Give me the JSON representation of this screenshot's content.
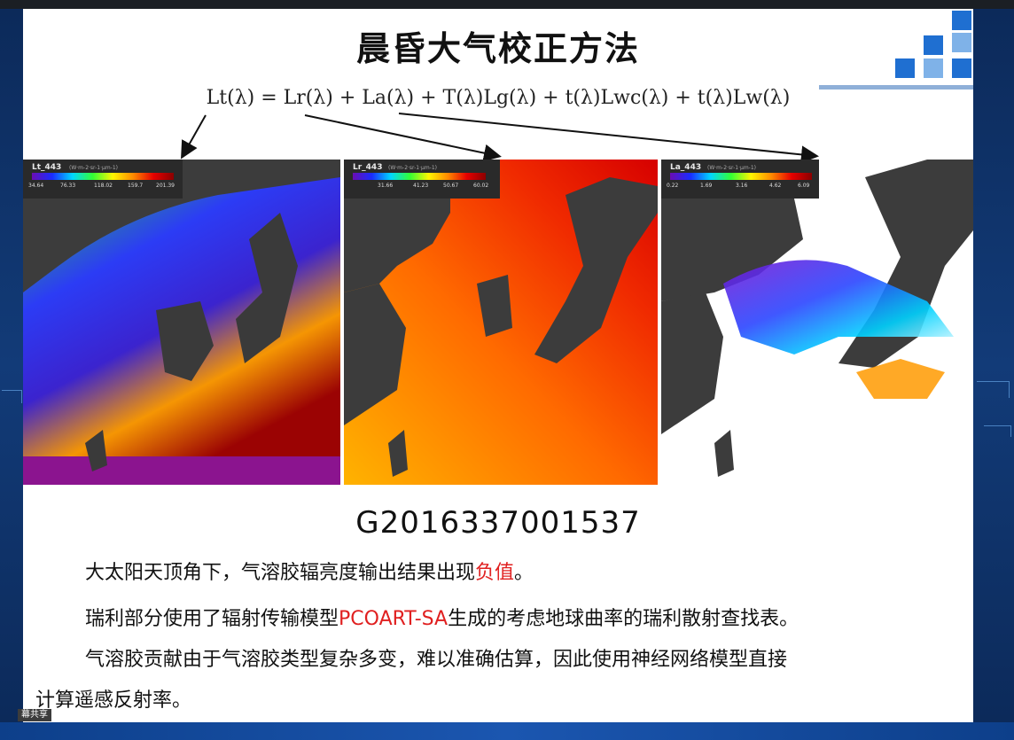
{
  "slide": {
    "title": "晨昏大气校正方法",
    "equation": "Lt(λ) = Lr(λ) + La(λ) + T(λ)Lg(λ) + t(λ)Lwc(λ) + t(λ)Lw(λ)",
    "panels": [
      {
        "label": "Lt_443",
        "unit": "(W·m-2·sr-1·µm-1)",
        "ticks": [
          "34.64",
          "76.33",
          "118.02",
          "159.7",
          "201.39"
        ],
        "colorbar": [
          "#6a0db3",
          "#1a2cff",
          "#00d6ff",
          "#32ff35",
          "#fff500",
          "#ff8a00",
          "#e60000",
          "#8b0000"
        ]
      },
      {
        "label": "Lr_443",
        "unit": "(W·m-2·sr-1·µm-1)",
        "ticks": [
          "31.66",
          "41.23",
          "50.67",
          "60.02"
        ],
        "colorbar": [
          "#6a0db3",
          "#1a2cff",
          "#00d6ff",
          "#32ff35",
          "#fff500",
          "#ff8a00",
          "#e60000",
          "#8b0000"
        ]
      },
      {
        "label": "La_443",
        "unit": "(W·m-2·sr-1·µm-1)",
        "ticks": [
          "0.22",
          "1.69",
          "3.16",
          "4.62",
          "6.09"
        ],
        "colorbar": [
          "#6a0db3",
          "#1a2cff",
          "#00d6ff",
          "#32ff35",
          "#fff500",
          "#ff8a00",
          "#e60000",
          "#8b0000"
        ]
      }
    ],
    "granule_id": "G2016337001537",
    "paragraphs": {
      "p1_text": "大太阳天顶角下，气溶胶辐亮度输出结果出现",
      "p1_highlight": "负值",
      "p1_end": "。",
      "p2_text": "瑞利部分使用了辐射传输模型",
      "p2_highlight": "PCOART-SA",
      "p2_end": "生成的考虑地球曲率的瑞利散射查找表。",
      "p3_line1": "气溶胶贡献由于气溶胶类型复杂多变，难以准确估算，因此使用神经网络模型直接",
      "p3_line2": "计算遥感反射率。"
    },
    "colors": {
      "accent_red": "#e02020",
      "deco_blue": "#1f6fd1",
      "deco_light": "#7fb2e8"
    }
  },
  "screen_share_label": "幕共享"
}
